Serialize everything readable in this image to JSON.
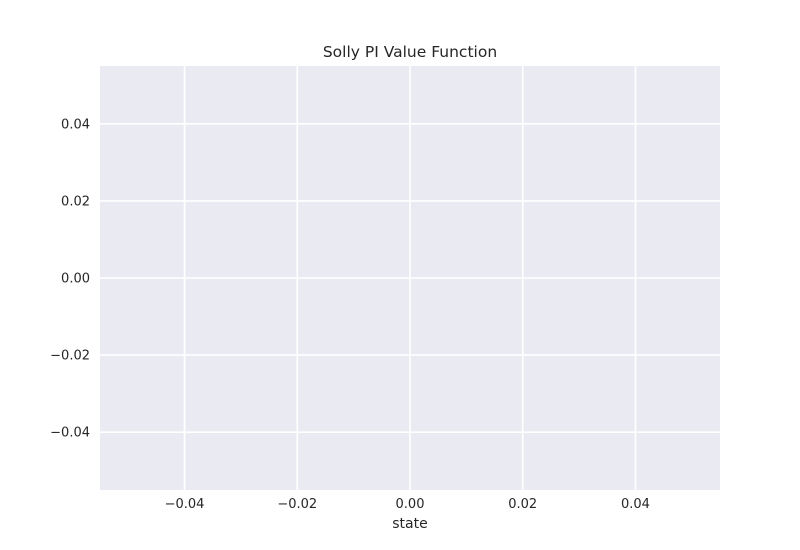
{
  "chart_data": {
    "type": "line",
    "title": "Solly PI Value Function",
    "xlabel": "state",
    "ylabel": "",
    "xlim": [
      -0.055,
      0.055
    ],
    "ylim": [
      -0.055,
      0.055
    ],
    "x_ticks": [
      -0.04,
      -0.02,
      0.0,
      0.02,
      0.04
    ],
    "x_tick_labels": [
      "−0.04",
      "−0.02",
      "0.00",
      "0.02",
      "0.04"
    ],
    "y_ticks": [
      -0.04,
      -0.02,
      0.0,
      0.02,
      0.04
    ],
    "y_tick_labels": [
      "−0.04",
      "−0.02",
      "0.00",
      "0.02",
      "0.04"
    ],
    "series": [],
    "grid": true,
    "legend": "none",
    "colors": {
      "plot_background": "#eaeaf2",
      "grid": "#ffffff",
      "text": "#262626"
    }
  }
}
